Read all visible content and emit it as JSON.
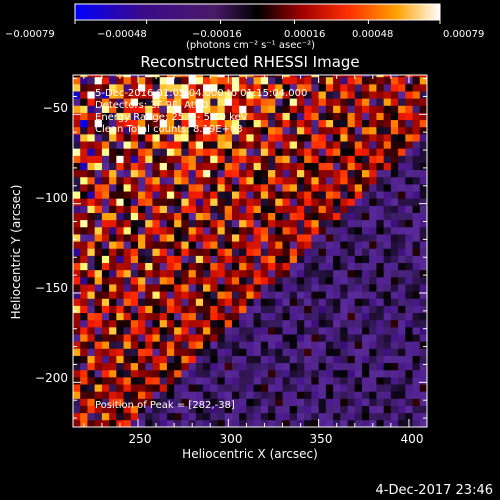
{
  "chart_data": {
    "type": "heatmap",
    "title": "Reconstructed RHESSI Image",
    "xlabel": "Heliocentric X (arcsec)",
    "ylabel": "Heliocentric Y (arcsec)",
    "xlim": [
      214,
      410
    ],
    "ylim": [
      -225,
      -28
    ],
    "xticks": [
      "250",
      "300",
      "350",
      "400"
    ],
    "xtick_values": [
      250,
      300,
      350,
      400
    ],
    "yticks": [
      "−50",
      "−100",
      "−150",
      "−200"
    ],
    "ytick_values": [
      -50,
      -100,
      -150,
      -200
    ],
    "colorbar": {
      "range": [
        -0.00079,
        0.00079
      ],
      "ticks": [
        "−0.00079",
        "−0.00048",
        "−0.00016",
        "0.00016",
        "0.00048",
        "0.00079"
      ],
      "tick_values": [
        -0.00079,
        -0.00048,
        -0.00016,
        0.00016,
        0.00048,
        0.00079
      ],
      "unit_label": "(photons cm⁻² s⁻¹ asec⁻²)"
    },
    "annotations": [
      "5-Dec-2016 01:05:04.000 to 01:15:04.000",
      "Detectors: 3F 9F, Att 0",
      "Energy Range: 25.0 - 50.0 keV",
      "Clean     Total counts: 8.19E+03"
    ],
    "peak_label": "Position of Peak = [282,-38]",
    "peak": [
      282,
      -38
    ],
    "colormap": [
      "#0000ff",
      "#3a0a7a",
      "#5a2a9a",
      "#000000",
      "#8b0000",
      "#ff2000",
      "#ff9900",
      "#ffff80",
      "#ffffff"
    ],
    "pixel_size_arcsec": 4
  },
  "footer": {
    "timestamp": "4-Dec-2017 23:46"
  }
}
